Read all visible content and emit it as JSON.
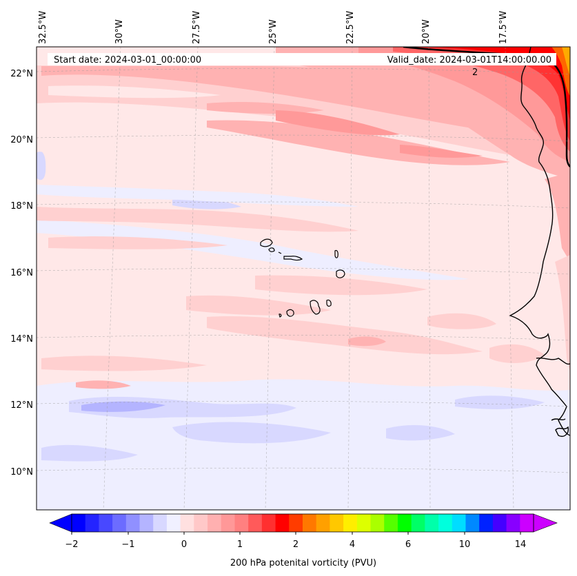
{
  "map": {
    "start_date": "Start date: 2024-03-01_00:00:00",
    "valid_date": "Valid_date: 2024-03-01T14:00:00.00",
    "contour_label": "2",
    "lon_labels": [
      "32.5°W",
      "30°W",
      "27.5°W",
      "25°W",
      "22.5°W",
      "20°W",
      "17.5°W"
    ],
    "lat_labels": [
      "22°N",
      "20°N",
      "18°N",
      "16°N",
      "14°N",
      "12°N",
      "10°N"
    ],
    "colors": {
      "very_light_blue": "#eeeeff",
      "light_blue": "#d0d0ff",
      "mid_blue": "#b4b4ff",
      "light_pink": "#ffe6e6",
      "pink": "#ffcccc",
      "mid_pink": "#ffb2b2",
      "coral": "#ff9999",
      "red": "#ff3333",
      "deep_red": "#ff0000",
      "orange": "#ff6600",
      "yellow": "#ffaa00"
    }
  },
  "colorbar": {
    "title": "200 hPa potenital vorticity (PVU)",
    "tick_labels": [
      "−2",
      "−1",
      "0",
      "1",
      "2",
      "4",
      "6",
      "10",
      "14"
    ],
    "colors": [
      "#0000ff",
      "#2424ff",
      "#4848ff",
      "#6c6cff",
      "#9090ff",
      "#b4b4ff",
      "#d8d8ff",
      "#f0f0ff",
      "#ffe0e0",
      "#ffc8c8",
      "#ffb0b0",
      "#ff9898",
      "#ff8080",
      "#ff5a5a",
      "#ff3030",
      "#ff0000",
      "#ff3c00",
      "#ff7800",
      "#ffa000",
      "#ffc800",
      "#ffee00",
      "#ddff00",
      "#aaff00",
      "#55ff00",
      "#00ff00",
      "#00ff66",
      "#00ffaa",
      "#00ffdd",
      "#00ddff",
      "#0088ff",
      "#0022ff",
      "#4400ff",
      "#8800ff",
      "#cc00ff"
    ]
  }
}
